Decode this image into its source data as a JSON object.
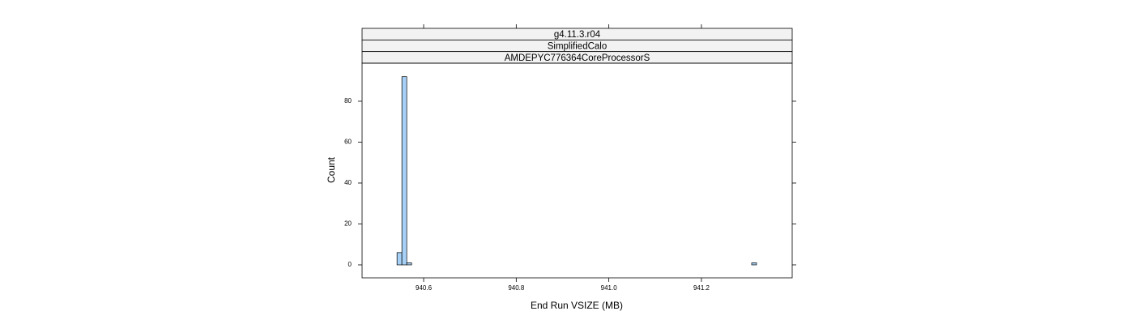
{
  "chart_data": {
    "type": "histogram",
    "strips": [
      "g4.11.3.r04",
      "SimplifiedCalo",
      "AMDEPYC776364CoreProcessorS"
    ],
    "x_label": "End Run VSIZE (MB)",
    "y_label": "Count",
    "bins": [
      940.515,
      940.5425,
      940.553,
      940.5635,
      940.574,
      941.3085,
      941.319,
      941.355
    ],
    "counts": [
      0,
      6,
      92,
      1,
      0,
      1,
      0
    ],
    "color": "#a6d0f5",
    "edge_color": "#000000",
    "strip_color": "#f2f2f2",
    "xlim": [
      940.467,
      941.396
    ],
    "ylim": [
      -6.34,
      98.6
    ],
    "xticks": [
      940.6,
      940.8,
      {
        "value": 941,
        "label": "941.0"
      },
      941.2
    ],
    "yticks": [
      0,
      20,
      40,
      60,
      80
    ]
  }
}
